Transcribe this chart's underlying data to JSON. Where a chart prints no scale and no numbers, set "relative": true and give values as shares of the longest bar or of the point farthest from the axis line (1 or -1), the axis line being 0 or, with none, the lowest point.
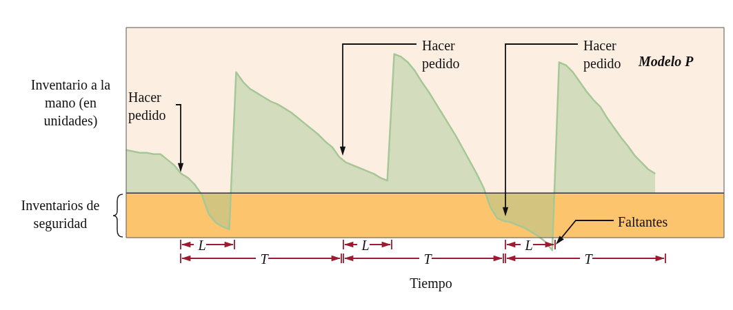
{
  "chart_data": {
    "type": "area",
    "relative": true,
    "ylabel": "Inventario a la mano (en unidades)",
    "xlabel": "Tiempo",
    "categories": [
      null,
      null,
      null,
      null,
      null,
      null,
      null,
      null,
      null,
      null,
      null,
      null,
      null,
      null,
      null,
      null,
      null,
      null,
      null,
      null,
      null,
      null,
      null,
      null,
      null,
      null,
      null,
      null,
      null,
      null,
      null,
      null,
      null,
      null,
      null,
      null,
      null,
      null,
      null,
      null,
      null,
      null,
      null,
      null,
      null,
      null,
      null,
      null,
      null,
      null,
      null,
      null,
      null,
      null,
      null,
      null,
      null,
      null,
      null,
      null,
      null,
      null,
      null,
      null,
      null,
      null,
      null,
      null,
      null,
      null,
      null,
      null,
      null,
      null,
      null,
      null,
      null,
      null,
      null,
      null,
      null,
      null,
      null,
      null,
      null,
      null,
      null,
      null
    ],
    "series": [
      {
        "color": "#a6c796",
        "values": [
          0.31,
          0.3,
          0.29,
          0.29,
          0.28,
          0.28,
          0.24,
          0.2,
          0.14,
          0.11,
          0.06,
          -0.01,
          -0.15,
          -0.21,
          -0.24,
          -0.26,
          0.87,
          0.8,
          0.75,
          0.72,
          0.69,
          0.66,
          0.64,
          0.61,
          0.58,
          0.54,
          0.5,
          0.46,
          0.42,
          0.37,
          0.33,
          0.26,
          0.22,
          0.2,
          0.18,
          0.16,
          0.14,
          0.11,
          0.09,
          1.0,
          0.98,
          0.94,
          0.88,
          0.8,
          0.73,
          0.65,
          0.57,
          0.49,
          0.41,
          0.32,
          0.23,
          0.14,
          0.04,
          -0.1,
          -0.18,
          -0.2,
          -0.21,
          -0.23,
          -0.25,
          -0.28,
          -0.31,
          -0.35,
          -0.41,
          0.94,
          0.92,
          0.87,
          0.8,
          0.73,
          0.67,
          0.62,
          0.54,
          0.47,
          0.4,
          0.34,
          0.27,
          0.22,
          0.17,
          0.14,
          null,
          null,
          null,
          null,
          null,
          null,
          null,
          null,
          null,
          null
        ]
      }
    ],
    "bands": [
      {
        "axis": "y",
        "from": -0.32,
        "to": 0,
        "label": "Inventarios de seguridad",
        "color": "#fcc46c"
      }
    ],
    "annotations": [
      "Hacer pedido",
      "Hacer pedido",
      "Hacer pedido",
      "Modelo P",
      "Faltantes",
      "L",
      "L",
      "L",
      "T",
      "T",
      "T"
    ],
    "legend": false
  }
}
